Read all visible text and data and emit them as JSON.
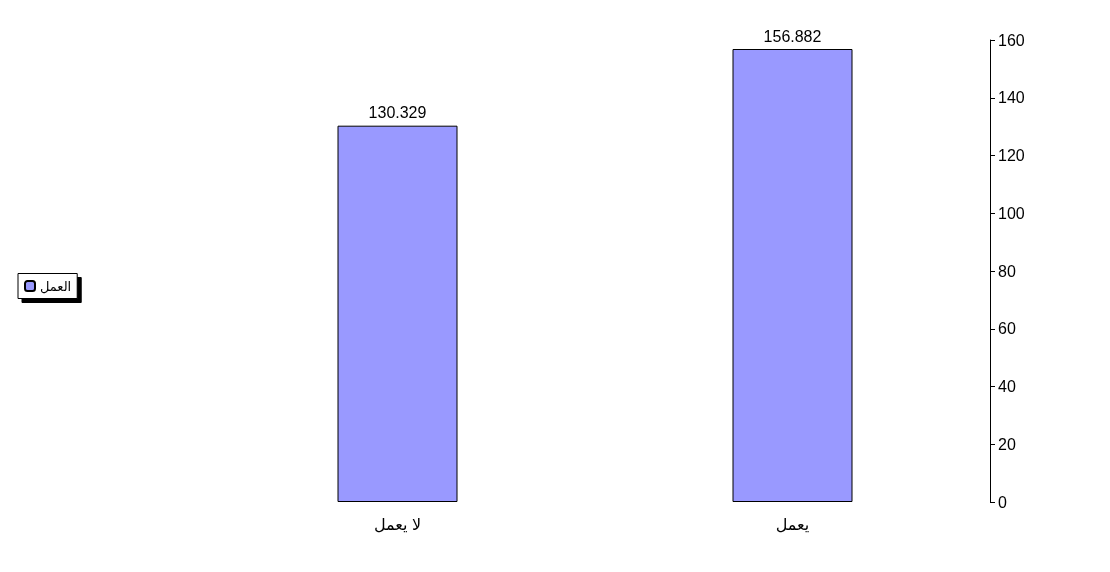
{
  "chart_data": {
    "type": "bar",
    "categories": [
      "لا يعمل",
      "يعمل"
    ],
    "series": [
      {
        "name": "العمل",
        "color": "#9999ff",
        "values": [
          130.329,
          156.882
        ]
      }
    ],
    "ylim": [
      0,
      160
    ],
    "yticks": [
      0,
      20,
      40,
      60,
      80,
      100,
      120,
      140,
      160
    ],
    "grid": false,
    "legend": "left",
    "data_labels": true
  }
}
